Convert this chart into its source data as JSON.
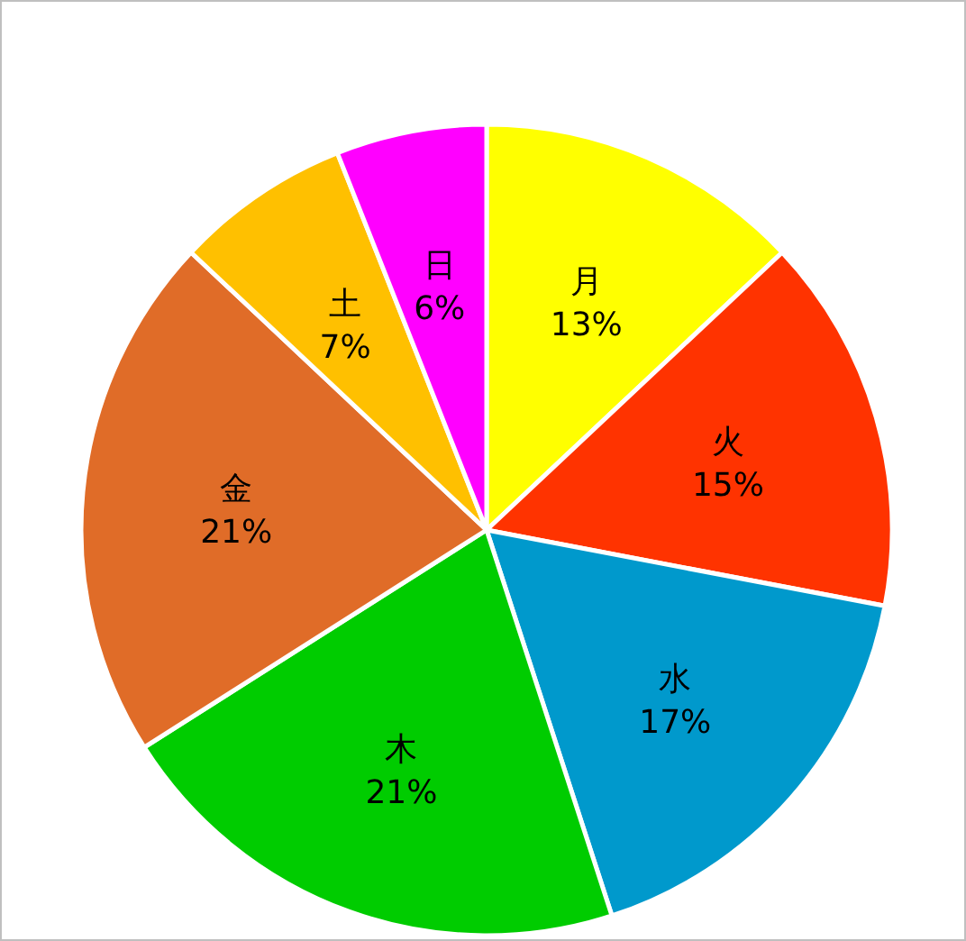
{
  "chart_data": {
    "type": "pie",
    "categories": [
      "月",
      "火",
      "水",
      "木",
      "金",
      "土",
      "日"
    ],
    "values": [
      13,
      15,
      17,
      21,
      21,
      7,
      6
    ],
    "colors": [
      "#ffff00",
      "#ff3300",
      "#0099cc",
      "#00cc00",
      "#e06c28",
      "#ffc000",
      "#ff00ff"
    ],
    "value_labels": [
      "13%",
      "15%",
      "17%",
      "21%",
      "21%",
      "7%",
      "6%"
    ]
  }
}
